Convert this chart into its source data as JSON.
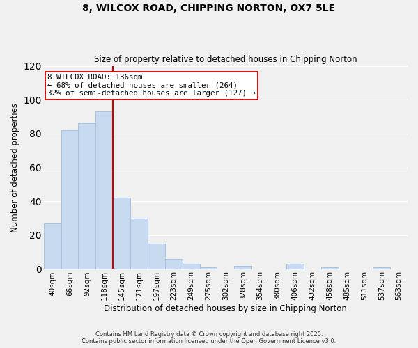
{
  "title": "8, WILCOX ROAD, CHIPPING NORTON, OX7 5LE",
  "subtitle": "Size of property relative to detached houses in Chipping Norton",
  "xlabel": "Distribution of detached houses by size in Chipping Norton",
  "ylabel": "Number of detached properties",
  "bar_color": "#c8daf0",
  "bar_edge_color": "#a8c4e0",
  "categories": [
    "40sqm",
    "66sqm",
    "92sqm",
    "118sqm",
    "145sqm",
    "171sqm",
    "197sqm",
    "223sqm",
    "249sqm",
    "275sqm",
    "302sqm",
    "328sqm",
    "354sqm",
    "380sqm",
    "406sqm",
    "432sqm",
    "458sqm",
    "485sqm",
    "511sqm",
    "537sqm",
    "563sqm"
  ],
  "values": [
    27,
    82,
    86,
    93,
    42,
    30,
    15,
    6,
    3,
    1,
    0,
    2,
    0,
    0,
    3,
    0,
    1,
    0,
    0,
    1,
    0
  ],
  "ylim": [
    0,
    120
  ],
  "yticks": [
    0,
    20,
    40,
    60,
    80,
    100,
    120
  ],
  "annotation_text": "8 WILCOX ROAD: 136sqm\n← 68% of detached houses are smaller (264)\n32% of semi-detached houses are larger (127) →",
  "annotation_box_color": "#ffffff",
  "annotation_box_edge_color": "#cc0000",
  "line_color": "#cc0000",
  "footer_line1": "Contains HM Land Registry data © Crown copyright and database right 2025.",
  "footer_line2": "Contains public sector information licensed under the Open Government Licence v3.0.",
  "background_color": "#f0f0f0",
  "grid_color": "#ffffff"
}
